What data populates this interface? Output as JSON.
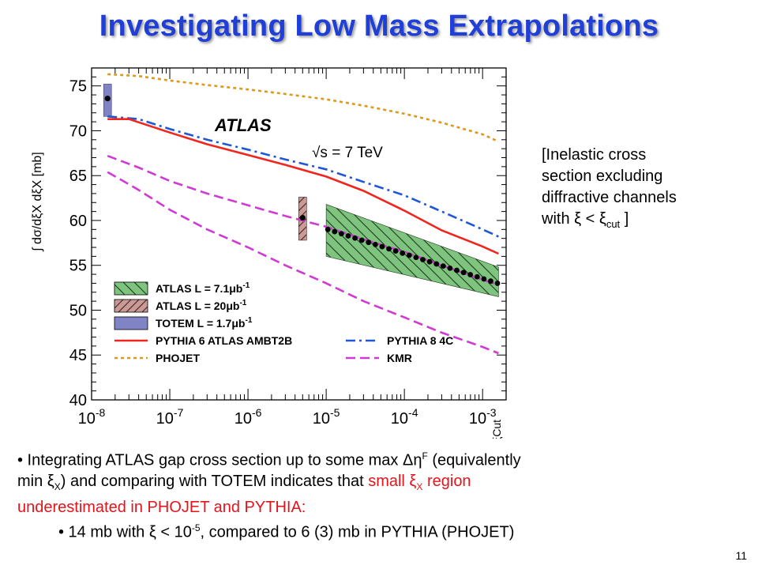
{
  "slide": {
    "title": "Investigating Low Mass Extrapolations",
    "page_number": "11",
    "note": {
      "line1": "[Inelastic cross",
      "line2": "section excluding",
      "line3": "diffractive channels",
      "line4_pre": "with ξ < ξ",
      "line4_sub": "cut",
      "line4_post": " ]"
    },
    "bullet1": {
      "t1": "• Integrating ATLAS gap cross section up to some max Δη",
      "sup1": "F",
      "t2": " (equivalently",
      "t3": "min ξ",
      "sub1": "X",
      "t4": ") and comparing with TOTEM indicates that ",
      "red1": "small ξ",
      "red_sub": "X",
      "red2": " region",
      "red3": "underestimated in PHOJET and PYTHIA:"
    },
    "bullet2": {
      "t1": "• 14 mb with ξ < 10",
      "sup": "-5",
      "t2": ", compared to 6 (3) mb in PYTHIA (PHOJET)"
    },
    "colors": {
      "title": "#1f3fd6",
      "highlight": "#e3141b"
    }
  },
  "chart_data": {
    "type": "line",
    "xscale": "log",
    "xlim": [
      1e-08,
      0.002
    ],
    "ylim": [
      40,
      77
    ],
    "xticks": [
      1e-08,
      1e-07,
      1e-06,
      1e-05,
      0.0001,
      0.001
    ],
    "xtick_labels": [
      {
        "base": "10",
        "exp": "-8"
      },
      {
        "base": "10",
        "exp": "-7"
      },
      {
        "base": "10",
        "exp": "-6"
      },
      {
        "base": "10",
        "exp": "-5"
      },
      {
        "base": "10",
        "exp": "-4"
      },
      {
        "base": "10",
        "exp": "-3"
      }
    ],
    "yticks": [
      40,
      45,
      50,
      55,
      60,
      65,
      70,
      75
    ],
    "ylabel": "∫ dσ/dξX dξX [mb]",
    "xlabel": "ξCut",
    "annotations": {
      "experiment": "ATLAS",
      "energy": "√s = 7 TeV"
    },
    "legend_placement": "bottom",
    "series": [
      {
        "name": "PHOJET",
        "style": "dotted",
        "color": "#d99a1e",
        "x": [
          1.6e-08,
          4e-08,
          1e-07,
          3e-07,
          1e-06,
          3e-06,
          1e-05,
          3e-05,
          0.0001,
          0.0003,
          0.001,
          0.0016
        ],
        "y": [
          76.3,
          76.1,
          75.6,
          75.1,
          74.6,
          74.1,
          73.5,
          72.8,
          71.9,
          70.9,
          69.6,
          68.8
        ]
      },
      {
        "name": "PYTHIA 8 4C",
        "style": "dashdot",
        "color": "#1f57d6",
        "x": [
          1.6e-08,
          4e-08,
          1e-07,
          3e-07,
          1e-06,
          3e-06,
          1e-05,
          3e-05,
          0.0001,
          0.0003,
          0.001,
          0.0016
        ],
        "y": [
          71.6,
          71.3,
          70.2,
          69.0,
          67.9,
          66.8,
          65.7,
          64.3,
          62.8,
          61.0,
          59.0,
          58.2
        ]
      },
      {
        "name": "PYTHIA 6 ATLAS AMBT2B",
        "style": "solid",
        "color": "#f0261e",
        "x": [
          1.6e-08,
          3e-08,
          1e-07,
          3e-07,
          1e-06,
          3e-06,
          1e-05,
          3e-05,
          0.0001,
          0.0003,
          0.001,
          0.0016
        ],
        "y": [
          71.3,
          71.3,
          69.8,
          68.5,
          67.3,
          66.2,
          64.9,
          63.3,
          61.1,
          58.9,
          57.1,
          56.3
        ]
      },
      {
        "name": "KMR",
        "style": "dashed",
        "color": "#d03ad3",
        "x": [
          1.6e-08,
          4e-08,
          1e-07,
          3e-07,
          1e-06,
          3e-06,
          1e-05,
          3e-05,
          0.0001,
          0.0003,
          0.001,
          0.0016
        ],
        "y": [
          67.2,
          65.9,
          64.4,
          63.0,
          61.7,
          60.5,
          59.3,
          57.9,
          56.5,
          55.0,
          53.4,
          52.8
        ]
      },
      {
        "name": "KMR",
        "style": "dashed",
        "color": "#d03ad3",
        "x": [
          1.6e-08,
          4e-08,
          1e-07,
          3e-07,
          1e-06,
          3e-06,
          1e-05,
          3e-05,
          0.0001,
          0.0003,
          0.001,
          0.0016
        ],
        "y": [
          65.4,
          63.4,
          61.2,
          59.0,
          57.0,
          55.0,
          53.0,
          51.0,
          49.2,
          47.5,
          45.9,
          45.2
        ]
      }
    ],
    "bands": [
      {
        "name": "ATLAS L = 7.1μb-1",
        "color": "#7ec47e",
        "hatch": "backslash",
        "x_range": [
          1e-05,
          0.0016
        ],
        "y_low_at_ends": [
          56.0,
          51.5
        ],
        "y_high_at_ends": [
          61.8,
          54.8
        ]
      },
      {
        "name": "ATLAS L = 20μb-1",
        "color": "#c99a96",
        "hatch": "slash",
        "x": 5e-06,
        "y_range": [
          57.8,
          62.6
        ]
      },
      {
        "name": "TOTEM L = 1.7μb-1",
        "color": "#8084c4",
        "hatch": "none",
        "x": 1.6e-08,
        "y_range": [
          71.6,
          75.2
        ]
      }
    ],
    "points": {
      "ATLAS_7.1": {
        "x_range": [
          1.05e-05,
          0.00155
        ],
        "y_at_ends": [
          59.0,
          53.0
        ],
        "count": 26
      },
      "ATLAS_20": {
        "x": 5e-06,
        "y": 60.3
      },
      "TOTEM": {
        "x": 1.6e-08,
        "y": 73.6
      }
    },
    "legend": [
      {
        "label_parts": [
          "ATLAS L = 7.1",
          "μb",
          "-1"
        ],
        "kind": "band",
        "color": "#7ec47e",
        "hatch": "backslash"
      },
      {
        "label_parts": [
          "ATLAS L = 20",
          "μb",
          "-1"
        ],
        "kind": "band",
        "color": "#c99a96",
        "hatch": "slash"
      },
      {
        "label_parts": [
          "TOTEM L = 1.7",
          "μb",
          "-1"
        ],
        "kind": "band",
        "color": "#8084c4",
        "hatch": "none"
      },
      {
        "label_parts": [
          "PYTHIA 6 ATLAS AMBT2B",
          "",
          ""
        ],
        "kind": "line",
        "color": "#f0261e",
        "style": "solid"
      },
      {
        "label_parts": [
          "PHOJET",
          "",
          ""
        ],
        "kind": "line",
        "color": "#d99a1e",
        "style": "dotted"
      },
      {
        "label_parts": [
          "PYTHIA 8 4C",
          "",
          ""
        ],
        "kind": "line",
        "color": "#1f57d6",
        "style": "dashdot"
      },
      {
        "label_parts": [
          "KMR",
          "",
          ""
        ],
        "kind": "line",
        "color": "#d03ad3",
        "style": "dashed"
      }
    ]
  }
}
